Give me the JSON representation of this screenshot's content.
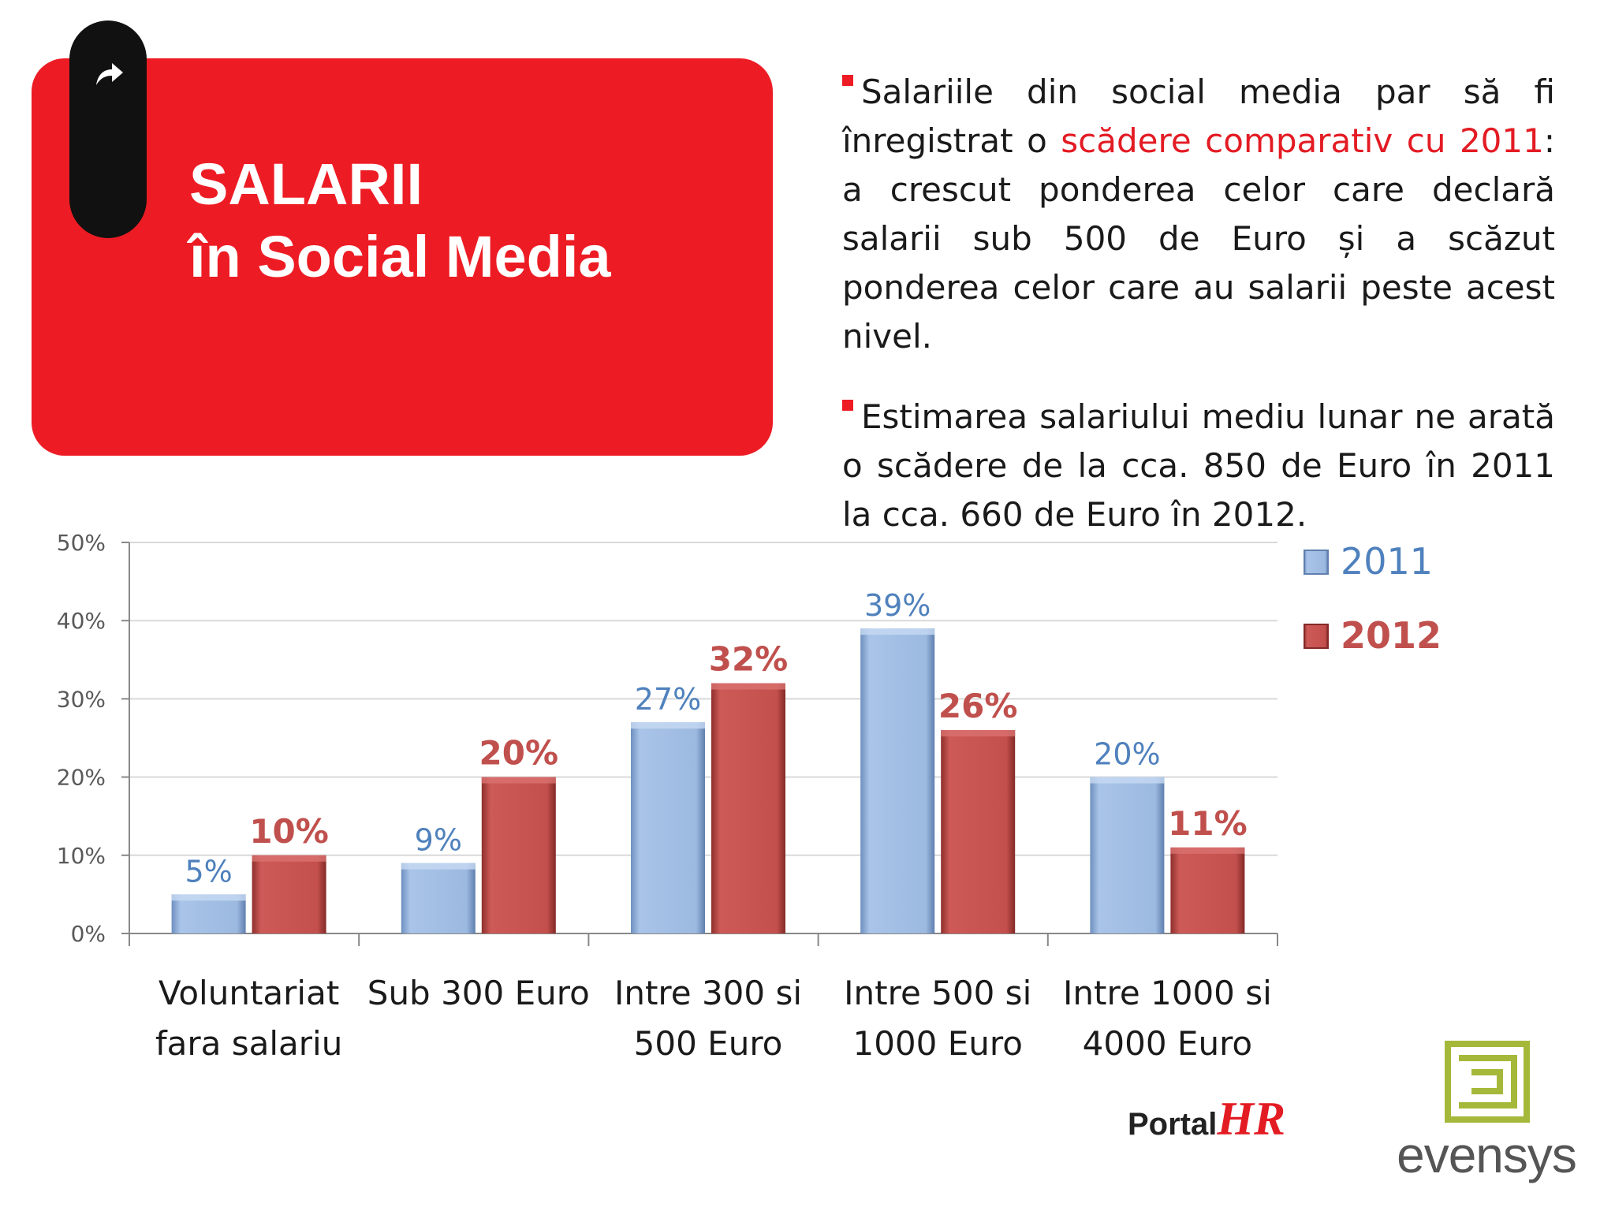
{
  "title": {
    "line1": "SALARII",
    "line2": "în Social Media"
  },
  "bullets": [
    {
      "before": "Salariile din social media par să fi înregistrat o ",
      "highlight": "scădere comparativ cu 2011",
      "after": ": a crescut ponderea celor care declară salarii sub 500 de Euro și a scăzut ponderea celor care au salarii peste acest nivel."
    },
    {
      "before": "Estimarea salariului mediu lunar ne arată o scădere de la cca. 850 de Euro în 2011 la cca. 660 de Euro în 2012.",
      "highlight": "",
      "after": ""
    }
  ],
  "colors": {
    "brand_red": "#ed1c24",
    "series_2011": "#9dbde5",
    "series_2012": "#c0504d",
    "label_2011": "#4f81bd",
    "label_2012": "#c0504d"
  },
  "icons": {
    "title_arrow": "share-arrow-icon"
  },
  "logos": {
    "portal": "Portal",
    "portal_hr": "HR",
    "evensys": "evensys"
  },
  "chart_data": {
    "type": "bar",
    "categories": [
      [
        "Voluntariat",
        "fara salariu"
      ],
      [
        "Sub 300 Euro"
      ],
      [
        "Intre 300 si",
        "500 Euro"
      ],
      [
        "Intre 500 si",
        "1000 Euro"
      ],
      [
        "Intre 1000 si",
        "4000 Euro"
      ]
    ],
    "series": [
      {
        "name": "2011",
        "values": [
          5,
          9,
          27,
          39,
          20
        ],
        "labels": [
          "5%",
          "9%",
          "27%",
          "39%",
          "20%"
        ]
      },
      {
        "name": "2012",
        "values": [
          10,
          20,
          32,
          26,
          11
        ],
        "labels": [
          "10%",
          "20%",
          "32%",
          "26%",
          "11%"
        ]
      }
    ],
    "ylim": [
      0,
      50
    ],
    "yticks": [
      "0%",
      "10%",
      "20%",
      "30%",
      "40%",
      "50%"
    ],
    "grid": true,
    "legend": "right"
  }
}
